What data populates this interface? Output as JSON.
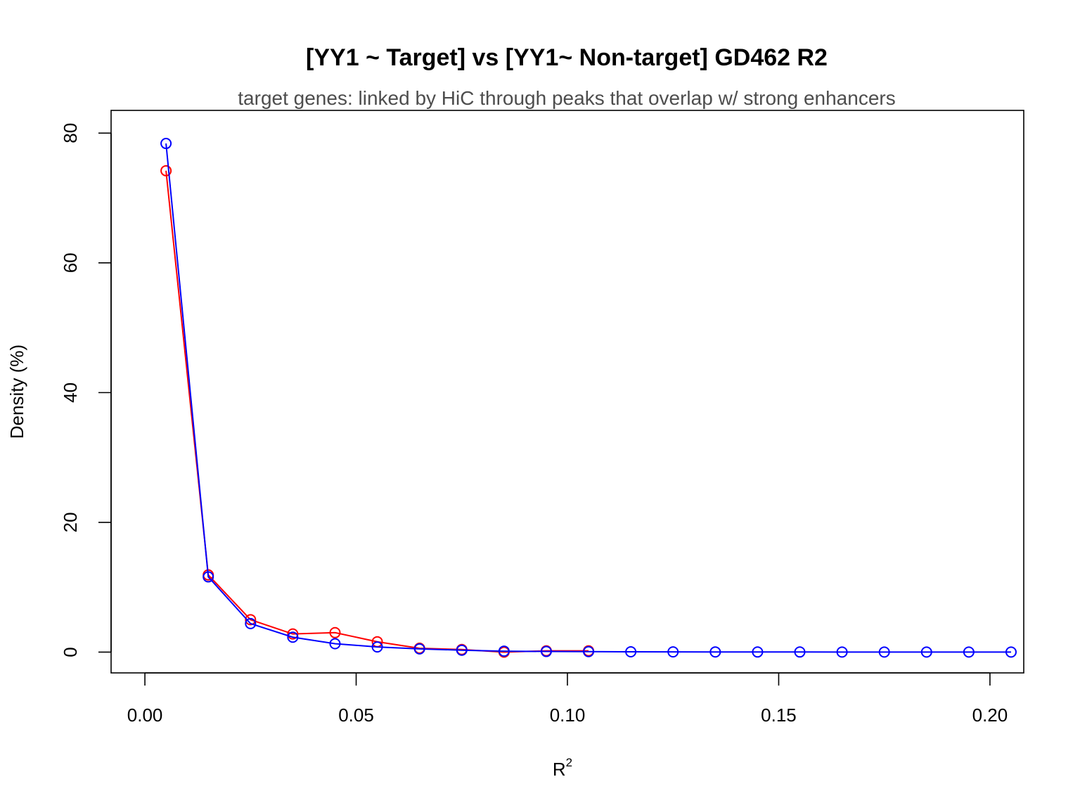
{
  "chart_data": {
    "type": "line",
    "title": "[YY1 ~ Target] vs [YY1~ Non-target] GD462 R2",
    "subtitle": "target genes: linked by HiC through peaks that overlap w/ strong enhancers",
    "xlabel": "R",
    "xlabel_superscript": "2",
    "ylabel": "Density (%)",
    "xlim": [
      -0.008,
      0.208
    ],
    "ylim": [
      -3.2,
      83.5
    ],
    "x_ticks": [
      0.0,
      0.05,
      0.1,
      0.15,
      0.2
    ],
    "x_tick_labels": [
      "0.00",
      "0.05",
      "0.10",
      "0.15",
      "0.20"
    ],
    "y_ticks": [
      0,
      20,
      40,
      60,
      80
    ],
    "y_tick_labels": [
      "0",
      "20",
      "40",
      "60",
      "80"
    ],
    "grid": false,
    "legend": "none",
    "series": [
      {
        "color": "#ff0000",
        "marker": "open-circle",
        "x": [
          0.005,
          0.015,
          0.025,
          0.035,
          0.045,
          0.055,
          0.065,
          0.075,
          0.085,
          0.095,
          0.105
        ],
        "y": [
          74.2,
          11.9,
          5.0,
          2.8,
          3.0,
          1.6,
          0.6,
          0.4,
          0.0,
          0.2,
          0.2
        ]
      },
      {
        "color": "#0000ff",
        "marker": "open-circle",
        "x": [
          0.005,
          0.015,
          0.025,
          0.035,
          0.045,
          0.055,
          0.065,
          0.075,
          0.085,
          0.095,
          0.105,
          0.115,
          0.125,
          0.135,
          0.145,
          0.155,
          0.165,
          0.175,
          0.185,
          0.195,
          0.205
        ],
        "y": [
          78.4,
          11.6,
          4.4,
          2.3,
          1.3,
          0.8,
          0.5,
          0.3,
          0.15,
          0.1,
          0.08,
          0.05,
          0.04,
          0.03,
          0.02,
          0.02,
          0.01,
          0.01,
          0.01,
          0.01,
          0.01
        ]
      }
    ]
  }
}
